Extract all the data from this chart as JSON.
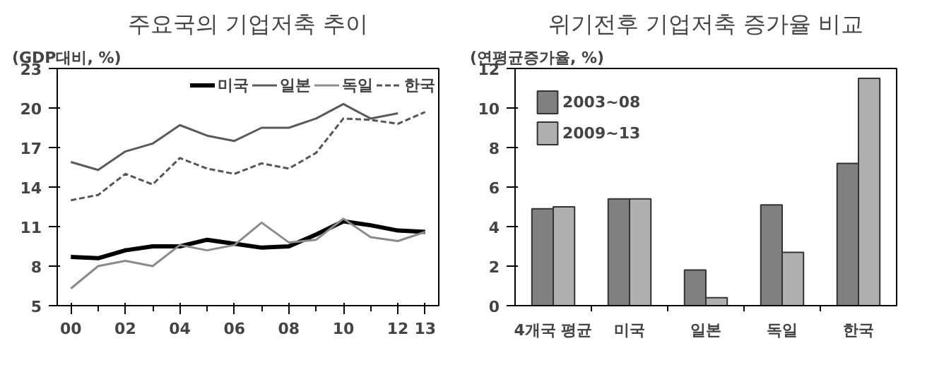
{
  "chart_data": [
    {
      "type": "line",
      "title": "주요국의 기업저축 추이",
      "ylabel": "(GDP대비, %)",
      "x": [
        2000,
        2001,
        2002,
        2003,
        2004,
        2005,
        2006,
        2007,
        2008,
        2009,
        2010,
        2011,
        2012,
        2013
      ],
      "series": [
        {
          "name": "미국",
          "color": "#000000",
          "line_style": "solid",
          "values": [
            8.7,
            8.6,
            9.2,
            9.5,
            9.5,
            10.0,
            9.7,
            9.4,
            9.5,
            10.4,
            11.4,
            11.1,
            10.7,
            10.6
          ]
        },
        {
          "name": "일본",
          "color": "#5a5a5a",
          "line_style": "solid",
          "values": [
            15.9,
            15.3,
            16.7,
            17.3,
            18.7,
            17.9,
            17.5,
            18.5,
            18.5,
            19.2,
            20.3,
            19.2,
            19.6,
            null
          ]
        },
        {
          "name": "독일",
          "color": "#8a8a8a",
          "line_style": "solid",
          "values": [
            6.3,
            8.0,
            8.4,
            8.0,
            9.6,
            9.2,
            9.6,
            11.3,
            9.8,
            10.0,
            11.6,
            10.2,
            9.9,
            10.6
          ]
        },
        {
          "name": "한국",
          "color": "#555555",
          "line_style": "dashed",
          "values": [
            13.0,
            13.4,
            15.0,
            14.2,
            16.2,
            15.4,
            15.0,
            15.8,
            15.4,
            16.6,
            19.2,
            19.1,
            18.8,
            19.7
          ]
        }
      ],
      "xlim": [
        1999.5,
        2013.5
      ],
      "xticks": [
        {
          "value": 2000,
          "label": "00"
        },
        {
          "value": 2002,
          "label": "02"
        },
        {
          "value": 2004,
          "label": "04"
        },
        {
          "value": 2006,
          "label": "06"
        },
        {
          "value": 2008,
          "label": "08"
        },
        {
          "value": 2010,
          "label": "10"
        },
        {
          "value": 2012,
          "label": "12"
        },
        {
          "value": 2013,
          "label": "13"
        }
      ],
      "ylim": [
        5,
        23
      ],
      "yticks": [
        5,
        8,
        11,
        14,
        17,
        20,
        23
      ],
      "grid": false,
      "legend": "top right",
      "marker": "none"
    },
    {
      "type": "bar",
      "title": "위기전후 기업저축 증가율 비교",
      "ylabel": "(연평균증가율, %)",
      "categories": [
        "4개국 평균",
        "미국",
        "일본",
        "독일",
        "한국"
      ],
      "series": [
        {
          "name": "2003~08",
          "color": "#808080",
          "values": [
            4.9,
            5.4,
            1.8,
            5.1,
            7.2
          ]
        },
        {
          "name": "2009~13",
          "color": "#b0b0b0",
          "values": [
            5.0,
            5.4,
            0.4,
            2.7,
            11.5
          ]
        }
      ],
      "ylim": [
        0,
        12
      ],
      "yticks": [
        0,
        2,
        4,
        6,
        8,
        10,
        12
      ],
      "grid": false,
      "legend": "top left"
    }
  ]
}
